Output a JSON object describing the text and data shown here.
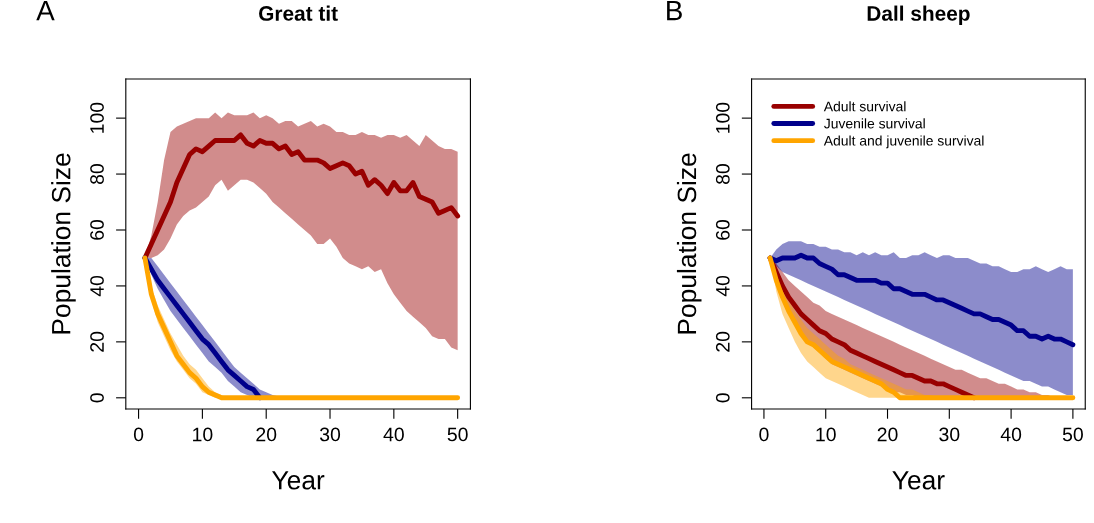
{
  "chart_data": [
    {
      "type": "line",
      "title": "Great tit",
      "xlabel": "Year",
      "ylabel": "Population Size",
      "annotations": [
        "A"
      ],
      "xlim": [
        -2,
        52
      ],
      "ylim": [
        -4,
        114
      ],
      "xticks": [
        0,
        10,
        20,
        30,
        40,
        50
      ],
      "yticks": [
        0,
        20,
        40,
        60,
        80,
        100
      ],
      "grid": false,
      "line_style": "solid",
      "marker": "none",
      "x": [
        1,
        2,
        3,
        4,
        5,
        6,
        7,
        8,
        9,
        10,
        11,
        12,
        13,
        14,
        15,
        16,
        17,
        18,
        19,
        20,
        21,
        22,
        23,
        24,
        25,
        26,
        27,
        28,
        29,
        30,
        31,
        32,
        33,
        34,
        35,
        36,
        37,
        38,
        39,
        40,
        41,
        42,
        43,
        44,
        45,
        46,
        47,
        48,
        49,
        50
      ],
      "series": [
        {
          "color": "#990000",
          "values": [
            50,
            55,
            60,
            65,
            70,
            77,
            82,
            87,
            89,
            88,
            90,
            92,
            92,
            92,
            92,
            94,
            91,
            90,
            92,
            91,
            91,
            89,
            90,
            87,
            88,
            85,
            85,
            85,
            84,
            82,
            83,
            84,
            83,
            80,
            81,
            76,
            78,
            76,
            73,
            77,
            74,
            74,
            77,
            72,
            71,
            70,
            66,
            67,
            68,
            65
          ],
          "upper": [
            50,
            58,
            70,
            85,
            95,
            97,
            98,
            99,
            100,
            100,
            100,
            102,
            100,
            102,
            101,
            101,
            101,
            102,
            100,
            101,
            100,
            98,
            99,
            99,
            97,
            98,
            99,
            97,
            98,
            97,
            95,
            95,
            94,
            94,
            95,
            94,
            94,
            93,
            94,
            94,
            93,
            94,
            92,
            90,
            94,
            92,
            90,
            89,
            89,
            88
          ],
          "lower": [
            50,
            50,
            51,
            53,
            57,
            62,
            65,
            67,
            68,
            70,
            72,
            76,
            78,
            74,
            76,
            78,
            78,
            77,
            75,
            73,
            70,
            68,
            66,
            64,
            62,
            60,
            58,
            55,
            55,
            57,
            54,
            50,
            48,
            47,
            46,
            47,
            45,
            46,
            41,
            37,
            34,
            31,
            29,
            27,
            25,
            22,
            21,
            21,
            18,
            17
          ]
        },
        {
          "color": "#00008b",
          "x": [
            1,
            2,
            3,
            4,
            5,
            6,
            7,
            8,
            9,
            10,
            11,
            12,
            13,
            14,
            15,
            16,
            17,
            18,
            19,
            20,
            21,
            22,
            23
          ],
          "values": [
            50,
            46,
            42,
            39,
            36,
            33,
            30,
            27,
            24,
            21,
            19,
            16,
            13,
            10,
            8,
            6,
            4,
            3,
            0,
            null,
            null,
            null,
            null
          ],
          "upper": [
            50,
            50,
            47,
            44,
            41,
            38,
            35,
            32,
            29,
            26,
            23,
            20,
            17,
            14,
            11,
            9,
            7,
            5,
            3,
            2,
            1,
            0.5,
            0
          ],
          "lower": [
            50,
            44,
            39,
            35,
            31,
            28,
            25,
            22,
            19,
            16,
            13,
            11,
            9,
            6,
            4,
            2,
            1,
            0,
            0,
            0,
            0,
            0,
            0
          ]
        },
        {
          "color": "#ffa500",
          "values": [
            50,
            37,
            30,
            25,
            20,
            15,
            12,
            9,
            7,
            4,
            2,
            1,
            0,
            0,
            0,
            0,
            0,
            0,
            0,
            0,
            0,
            0,
            0,
            0,
            0,
            0,
            0,
            0,
            0,
            0,
            0,
            0,
            0,
            0,
            0,
            0,
            0,
            0,
            0,
            0,
            0,
            0,
            0,
            0,
            0,
            0,
            0,
            0,
            0,
            0
          ],
          "upper": [
            50,
            40,
            33,
            28,
            23,
            19,
            15,
            12,
            10,
            7,
            4,
            2,
            1,
            0,
            null,
            null,
            null,
            null,
            null,
            null,
            null,
            null,
            null,
            null,
            null,
            null,
            null,
            null,
            null,
            null,
            null,
            null,
            null,
            null,
            null,
            null,
            null,
            null,
            null,
            null,
            null,
            null,
            null,
            null,
            null,
            null,
            null,
            null,
            null,
            null
          ],
          "lower": [
            50,
            35,
            27,
            22,
            17,
            13,
            10,
            7,
            5,
            2,
            1,
            0,
            0,
            0,
            null,
            null,
            null,
            null,
            null,
            null,
            null,
            null,
            null,
            null,
            null,
            null,
            null,
            null,
            null,
            null,
            null,
            null,
            null,
            null,
            null,
            null,
            null,
            null,
            null,
            null,
            null,
            null,
            null,
            null,
            null,
            null,
            null,
            null,
            null,
            null
          ]
        }
      ]
    },
    {
      "type": "line",
      "title": "Dall sheep",
      "xlabel": "Year",
      "ylabel": "Population Size",
      "annotations": [
        "B"
      ],
      "xlim": [
        -2,
        52
      ],
      "ylim": [
        -4,
        114
      ],
      "xticks": [
        0,
        10,
        20,
        30,
        40,
        50
      ],
      "yticks": [
        0,
        20,
        40,
        60,
        80,
        100
      ],
      "grid": false,
      "legend": "top left",
      "line_style": "solid",
      "marker": "none",
      "x": [
        1,
        2,
        3,
        4,
        5,
        6,
        7,
        8,
        9,
        10,
        11,
        12,
        13,
        14,
        15,
        16,
        17,
        18,
        19,
        20,
        21,
        22,
        23,
        24,
        25,
        26,
        27,
        28,
        29,
        30,
        31,
        32,
        33,
        34,
        35,
        36,
        37,
        38,
        39,
        40,
        41,
        42,
        43,
        44,
        45,
        46,
        47,
        48,
        49,
        50
      ],
      "series": [
        {
          "name": "Adult survival",
          "color": "#990000",
          "x": [
            1,
            2,
            3,
            4,
            5,
            6,
            7,
            8,
            9,
            10,
            11,
            12,
            13,
            14,
            15,
            16,
            17,
            18,
            19,
            20,
            21,
            22,
            23,
            24,
            25,
            26,
            27,
            28,
            29,
            30,
            31,
            32,
            33,
            34,
            35,
            36,
            37,
            38,
            39,
            40,
            41,
            42,
            43,
            44,
            45,
            46,
            47
          ],
          "values": [
            50,
            45,
            40,
            36,
            33,
            30,
            28,
            26,
            24,
            23,
            21,
            20,
            19,
            17,
            16,
            15,
            14,
            13,
            12,
            11,
            10,
            9,
            8,
            8,
            7,
            6,
            6,
            5,
            5,
            4,
            3,
            2,
            1,
            0,
            null,
            null,
            null,
            null,
            null,
            null,
            null,
            null,
            null,
            null,
            null,
            null,
            null
          ],
          "upper": [
            50,
            48,
            45,
            42,
            40,
            38,
            36,
            34,
            33,
            31,
            30,
            29,
            28,
            27,
            26,
            25,
            24,
            23,
            22,
            21,
            20,
            19,
            18,
            17,
            16,
            15,
            14,
            13,
            12,
            11,
            10,
            10,
            9,
            8,
            7,
            7,
            6,
            5,
            5,
            4,
            3,
            3,
            2,
            2,
            1,
            1,
            0
          ],
          "lower": [
            50,
            42,
            35,
            30,
            26,
            23,
            20,
            18,
            16,
            14,
            12,
            11,
            10,
            9,
            8,
            7,
            6,
            5,
            4,
            3,
            2,
            2,
            1,
            1,
            0,
            0,
            0,
            0,
            0,
            0,
            0,
            0,
            0,
            0,
            0,
            0,
            0,
            0,
            0,
            0,
            0,
            0,
            0,
            0,
            0,
            0,
            0
          ]
        },
        {
          "name": "Juvenile survival",
          "color": "#00008b",
          "values": [
            50,
            49,
            50,
            50,
            50,
            51,
            50,
            50,
            48,
            47,
            46,
            44,
            44,
            43,
            42,
            42,
            42,
            42,
            41,
            41,
            39,
            39,
            38,
            37,
            37,
            37,
            36,
            35,
            35,
            34,
            33,
            32,
            31,
            30,
            30,
            29,
            28,
            28,
            27,
            26,
            24,
            24,
            22,
            22,
            21,
            22,
            21,
            21,
            20,
            19
          ],
          "upper": [
            50,
            53,
            55,
            56,
            56,
            56,
            55,
            55,
            54,
            54,
            53,
            53,
            52,
            52,
            51,
            52,
            51,
            52,
            51,
            51,
            52,
            50,
            50,
            51,
            51,
            52,
            51,
            50,
            51,
            51,
            50,
            50,
            50,
            49,
            48,
            48,
            47,
            47,
            46,
            45,
            45,
            46,
            46,
            47,
            46,
            45,
            46,
            47,
            46,
            46
          ],
          "lower": [
            50,
            47,
            45,
            44,
            43,
            42,
            41,
            40,
            39,
            38,
            37,
            36,
            35,
            34,
            33,
            32,
            31,
            30,
            29,
            28,
            27,
            26,
            25,
            24,
            23,
            22,
            21,
            20,
            19,
            18,
            17,
            16,
            15,
            14,
            13,
            12,
            11,
            10,
            9,
            8,
            7,
            6,
            6,
            5,
            4,
            4,
            3,
            2,
            1,
            1
          ]
        },
        {
          "name": "Adult and juvenile survival",
          "color": "#ffa500",
          "values": [
            50,
            42,
            36,
            31,
            27,
            23,
            20,
            19,
            17,
            15,
            13,
            12,
            11,
            10,
            9,
            8,
            7,
            6,
            5,
            3,
            2,
            0,
            0,
            0,
            0,
            0,
            0,
            0,
            0,
            0,
            0,
            0,
            0,
            0,
            0,
            0,
            0,
            0,
            0,
            0,
            0,
            0,
            0,
            0,
            0,
            0,
            0,
            0,
            0,
            0
          ],
          "upper": [
            50,
            45,
            40,
            35,
            31,
            28,
            25,
            23,
            21,
            19,
            17,
            15,
            14,
            12,
            11,
            10,
            9,
            8,
            7,
            6,
            5,
            4,
            3,
            3,
            2,
            1,
            1,
            0,
            null,
            null,
            null,
            null,
            null,
            null,
            null,
            null,
            null,
            null,
            null,
            null,
            null,
            null,
            null,
            null,
            null,
            null,
            null,
            null,
            null,
            null
          ],
          "lower": [
            50,
            38,
            30,
            25,
            20,
            16,
            13,
            11,
            9,
            7,
            6,
            5,
            4,
            3,
            2,
            1,
            0,
            0,
            0,
            0,
            0,
            0,
            0,
            0,
            0,
            0,
            0,
            0,
            null,
            null,
            null,
            null,
            null,
            null,
            null,
            null,
            null,
            null,
            null,
            null,
            null,
            null,
            null,
            null,
            null,
            null,
            null,
            null,
            null,
            null
          ]
        }
      ]
    }
  ]
}
